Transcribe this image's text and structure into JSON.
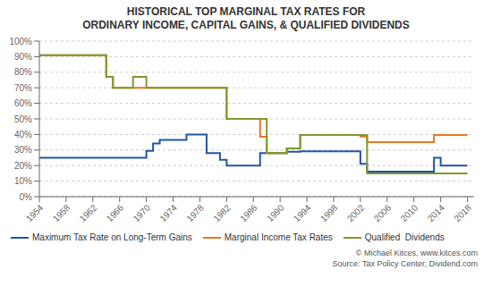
{
  "chart_data": {
    "type": "line",
    "title": "HISTORICAL TOP MARGINAL TAX RATES FOR",
    "subtitle": "ORDINARY INCOME, CAPITAL GAINS, & QUALIFIED DIVIDENDS",
    "annotations": [
      "© Michael Kitces, www.kitces.com",
      "Source: Tax Policy Center, Dividend.com"
    ],
    "xlim": [
      1954,
      2019
    ],
    "xticks": [
      1954,
      1958,
      1962,
      1966,
      1970,
      1974,
      1978,
      1982,
      1986,
      1990,
      1994,
      1998,
      2002,
      2006,
      2010,
      2014,
      2018
    ],
    "ylim": [
      0,
      100
    ],
    "yticks": [
      {
        "value": 0,
        "label": "0%"
      },
      {
        "value": 10,
        "label": "10%"
      },
      {
        "value": 20,
        "label": "20%"
      },
      {
        "value": 30,
        "label": "30%"
      },
      {
        "value": 40,
        "label": "40%"
      },
      {
        "value": 50,
        "label": "50%"
      },
      {
        "value": 60,
        "label": "60%"
      },
      {
        "value": 70,
        "label": "70%"
      },
      {
        "value": 80,
        "label": "80%"
      },
      {
        "value": 90,
        "label": "90%"
      },
      {
        "value": 100,
        "label": "100%"
      }
    ],
    "grid": "y",
    "legend": "lower left",
    "line_style": "step",
    "series": [
      {
        "name": "Maximum Tax Rate on Long-Term Gains",
        "color": "#2255a4",
        "x": [
          1954,
          1969,
          1970,
          1971,
          1972,
          1976,
          1977,
          1978,
          1979,
          1981,
          1982,
          1986,
          1987,
          1990,
          1991,
          1993,
          2001,
          2002,
          2003,
          2012,
          2013,
          2014,
          2018
        ],
        "values": [
          25,
          25,
          29.5,
          34.25,
          36.5,
          39.875,
          39.875,
          40,
          28,
          23.7,
          20,
          20,
          28,
          28,
          28.93,
          29.19,
          29.19,
          21.19,
          16.05,
          16.05,
          25,
          20,
          20
        ]
      },
      {
        "name": "Marginal Income Tax Rates",
        "color": "#e87722",
        "x": [
          1954,
          1963,
          1964,
          1965,
          1981,
          1982,
          1986,
          1987,
          1988,
          1990,
          1991,
          1993,
          2001,
          2002,
          2003,
          2012,
          2013,
          2018
        ],
        "values": [
          91,
          91,
          77,
          70,
          70,
          50,
          50,
          38.5,
          28,
          28,
          31,
          39.6,
          39.6,
          38.6,
          35,
          35,
          39.6,
          39.6
        ]
      },
      {
        "name": "Qualified  Dividends",
        "color": "#7d9a2e",
        "x": [
          1954,
          1963,
          1964,
          1965,
          1968,
          1970,
          1981,
          1982,
          1987,
          1988,
          1990,
          1991,
          1993,
          2002,
          2003,
          2018
        ],
        "values": [
          91,
          91,
          77,
          70,
          77,
          70,
          70,
          50,
          50,
          28,
          28,
          31,
          39.6,
          39.6,
          15,
          15
        ]
      }
    ]
  }
}
